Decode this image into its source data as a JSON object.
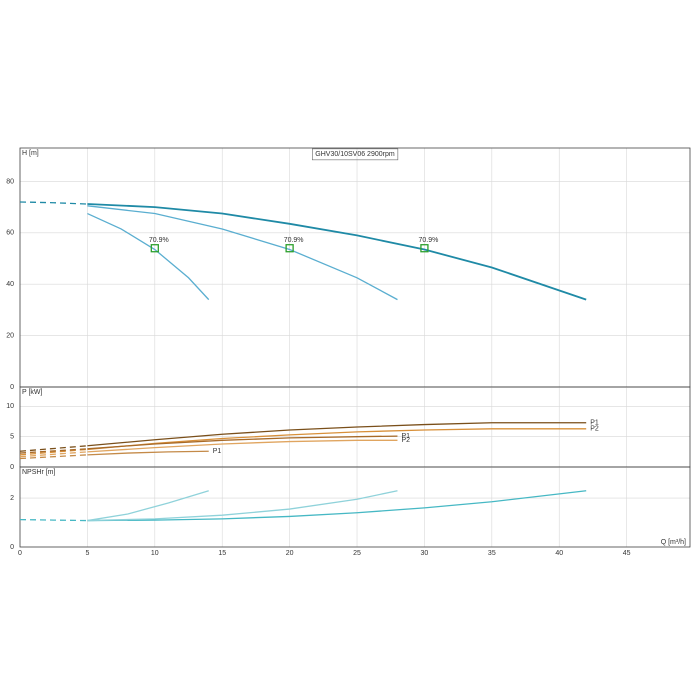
{
  "chart_data": [
    {
      "type": "line",
      "title": "GHV30/10SV06 2900rpm",
      "ylabel": "H [m]",
      "xlim": [
        0,
        49.7
      ],
      "ylim": [
        0,
        93
      ],
      "yticks": [
        0,
        20,
        40,
        60,
        80
      ],
      "grid": true,
      "series": [
        {
          "color": "#1f8aa6",
          "dash": true,
          "x": [
            0,
            2.5,
            5
          ],
          "values": [
            72,
            71.7,
            71.2
          ]
        },
        {
          "color": "#1f8aa6",
          "dash": false,
          "x": [
            5,
            10,
            15,
            20,
            25,
            30,
            35,
            42
          ],
          "values": [
            71.2,
            70,
            67.5,
            63.5,
            59,
            53.5,
            46.5,
            34
          ]
        },
        {
          "color": "#5aaed0",
          "dash": false,
          "x": [
            5,
            10,
            15,
            20,
            25,
            28
          ],
          "values": [
            70.5,
            67.5,
            61.5,
            53.5,
            42.5,
            34
          ]
        },
        {
          "color": "#5aaed0",
          "dash": false,
          "x": [
            5,
            7.5,
            10,
            12.5,
            14
          ],
          "values": [
            67.5,
            61.5,
            53.5,
            42.5,
            34
          ]
        }
      ],
      "annotations": [
        {
          "x": 10,
          "y": 54,
          "label": "70.9%"
        },
        {
          "x": 20,
          "y": 54,
          "label": "70.9%"
        },
        {
          "x": 30,
          "y": 54,
          "label": "70.9%"
        }
      ],
      "marker_color": "#2ca02c"
    },
    {
      "type": "line",
      "ylabel": "P [kW]",
      "xlim": [
        0,
        49.7
      ],
      "ylim": [
        0,
        13.2
      ],
      "yticks": [
        0,
        5,
        10
      ],
      "grid": true,
      "series": [
        {
          "color": "#7a4f1a",
          "dash": true,
          "x": [
            0,
            5
          ],
          "values": [
            2.6,
            3.5
          ]
        },
        {
          "color": "#d8903a",
          "dash": true,
          "x": [
            0,
            5
          ],
          "values": [
            2.0,
            2.9
          ]
        },
        {
          "color": "#7a4f1a",
          "dash": false,
          "label": "P1",
          "x": [
            5,
            10,
            15,
            20,
            25,
            30,
            35,
            42
          ],
          "values": [
            3.5,
            4.5,
            5.4,
            6.1,
            6.6,
            7.0,
            7.3,
            7.3
          ]
        },
        {
          "color": "#d8903a",
          "dash": false,
          "label": "P2",
          "x": [
            5,
            10,
            15,
            20,
            25,
            30,
            35,
            42
          ],
          "values": [
            2.9,
            3.9,
            4.7,
            5.3,
            5.8,
            6.1,
            6.3,
            6.3
          ]
        },
        {
          "color": "#a86a28",
          "dash": true,
          "x": [
            0,
            5
          ],
          "values": [
            2.3,
            3.0
          ]
        },
        {
          "color": "#e0a560",
          "dash": true,
          "x": [
            0,
            5
          ],
          "values": [
            1.7,
            2.5
          ]
        },
        {
          "color": "#a86a28",
          "dash": false,
          "label": "P1",
          "x": [
            5,
            10,
            15,
            20,
            25,
            28
          ],
          "values": [
            3.0,
            3.8,
            4.4,
            4.8,
            5.0,
            5.1
          ]
        },
        {
          "color": "#e0a560",
          "dash": false,
          "label": "P2",
          "x": [
            5,
            10,
            15,
            20,
            25,
            28
          ],
          "values": [
            2.5,
            3.2,
            3.8,
            4.2,
            4.4,
            4.4
          ]
        },
        {
          "color": "#c48a48",
          "dash": true,
          "x": [
            0,
            5
          ],
          "values": [
            1.4,
            2.0
          ]
        },
        {
          "color": "#c48a48",
          "dash": false,
          "label": "P1",
          "x": [
            5,
            8,
            11,
            14
          ],
          "values": [
            2.0,
            2.3,
            2.5,
            2.6
          ]
        }
      ]
    },
    {
      "type": "line",
      "ylabel": "NPSHr [m]",
      "xlabel": "Q [m³/h]",
      "xlim": [
        0,
        49.7
      ],
      "ylim": [
        0,
        3.27
      ],
      "yticks": [
        0,
        2
      ],
      "xticks": [
        0,
        5,
        10,
        15,
        20,
        25,
        30,
        35,
        40,
        45
      ],
      "grid": true,
      "series": [
        {
          "color": "#46b8c4",
          "dash": true,
          "x": [
            0,
            2.5,
            5
          ],
          "values": [
            1.12,
            1.1,
            1.08
          ]
        },
        {
          "color": "#46b8c4",
          "dash": false,
          "x": [
            5,
            10,
            15,
            20,
            25,
            30,
            35,
            42
          ],
          "values": [
            1.08,
            1.1,
            1.15,
            1.25,
            1.4,
            1.6,
            1.85,
            2.3
          ]
        },
        {
          "color": "#8fd2da",
          "dash": false,
          "x": [
            5,
            10,
            15,
            20,
            25,
            28
          ],
          "values": [
            1.08,
            1.15,
            1.3,
            1.55,
            1.95,
            2.3
          ]
        },
        {
          "color": "#8fd2da",
          "dash": false,
          "x": [
            5,
            8,
            11,
            14
          ],
          "values": [
            1.08,
            1.35,
            1.8,
            2.3
          ]
        }
      ]
    }
  ]
}
